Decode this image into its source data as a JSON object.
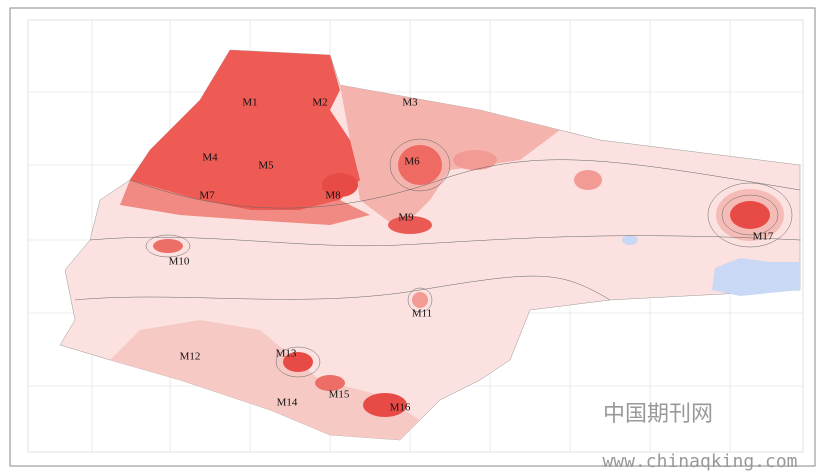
{
  "map": {
    "labels": [
      "M1",
      "M2",
      "M3",
      "M4",
      "M5",
      "M6",
      "M7",
      "M8",
      "M9",
      "M10",
      "M11",
      "M12",
      "M13",
      "M14",
      "M15",
      "M16",
      "M17"
    ]
  },
  "watermark": {
    "text": "中国期刊网",
    "url": "www.chinaqking.com"
  }
}
